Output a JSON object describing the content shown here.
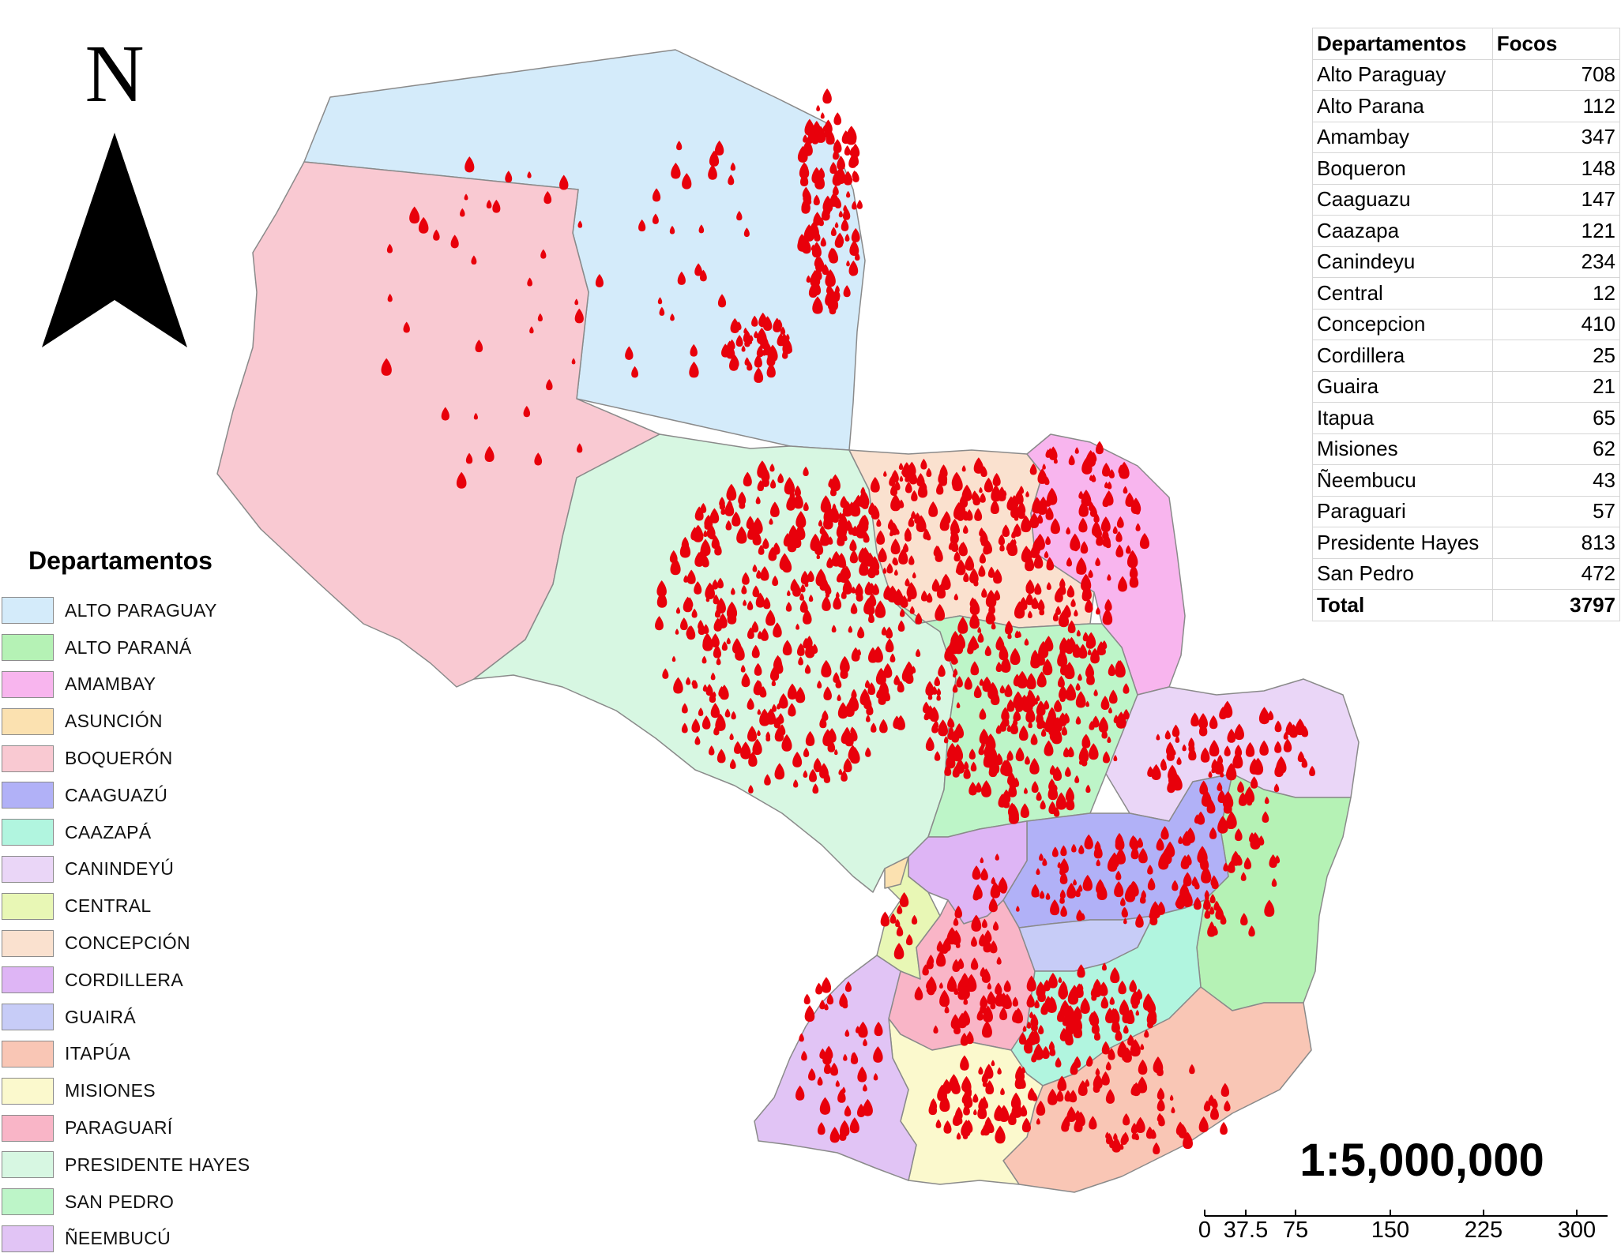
{
  "map": {
    "north_letter": "N",
    "scale_text": "1:5,000,000",
    "scale_bar_labels": [
      "0",
      "37.5",
      "75",
      "150",
      "225",
      "300"
    ]
  },
  "legend": {
    "title": "Departamentos",
    "items": [
      {
        "label": "ALTO PARAGUAY",
        "color": "#d4ebfa"
      },
      {
        "label": "ALTO PARANÁ",
        "color": "#b5f2b5"
      },
      {
        "label": "AMAMBAY",
        "color": "#f8b5ee"
      },
      {
        "label": "ASUNCIÓN",
        "color": "#fbe1b0"
      },
      {
        "label": "BOQUERÓN",
        "color": "#f9c9d2"
      },
      {
        "label": "CAAGUAZÚ",
        "color": "#b1b1f7"
      },
      {
        "label": "CAAZAPÁ",
        "color": "#b1f5df"
      },
      {
        "label": "CANINDEYÚ",
        "color": "#ead6f7"
      },
      {
        "label": "CENTRAL",
        "color": "#e8f7b5"
      },
      {
        "label": "CONCEPCIÓN",
        "color": "#fae1cf"
      },
      {
        "label": "CORDILLERA",
        "color": "#deb5f5"
      },
      {
        "label": "GUAIRÁ",
        "color": "#c7ccf7"
      },
      {
        "label": "ITAPÚA",
        "color": "#f9c6b5"
      },
      {
        "label": "MISIONES",
        "color": "#fbf9cd"
      },
      {
        "label": "PARAGUARÍ",
        "color": "#f9b5c7"
      },
      {
        "label": "PRESIDENTE HAYES",
        "color": "#d7f7e2"
      },
      {
        "label": "SAN PEDRO",
        "color": "#bdf5c8"
      },
      {
        "label": "ÑEEMBUCÚ",
        "color": "#e1c4f5"
      }
    ]
  },
  "table": {
    "headers": [
      "Departamentos",
      "Focos"
    ],
    "rows": [
      [
        "Alto Paraguay",
        "708"
      ],
      [
        "Alto Parana",
        "112"
      ],
      [
        "Amambay",
        "347"
      ],
      [
        "Boqueron",
        "148"
      ],
      [
        "Caaguazu",
        "147"
      ],
      [
        "Caazapa",
        "121"
      ],
      [
        "Canindeyu",
        "234"
      ],
      [
        "Central",
        "12"
      ],
      [
        "Concepcion",
        "410"
      ],
      [
        "Cordillera",
        "25"
      ],
      [
        "Guaira",
        "21"
      ],
      [
        "Itapua",
        "65"
      ],
      [
        "Misiones",
        "62"
      ],
      [
        "Ñeembucu",
        "43"
      ],
      [
        "Paraguari",
        "57"
      ],
      [
        "Presidente Hayes",
        "813"
      ],
      [
        "San Pedro",
        "472"
      ]
    ],
    "total": [
      "Total",
      "3797"
    ]
  },
  "colors": {
    "fire": "#e8000b",
    "border": "#8a8a8a"
  }
}
